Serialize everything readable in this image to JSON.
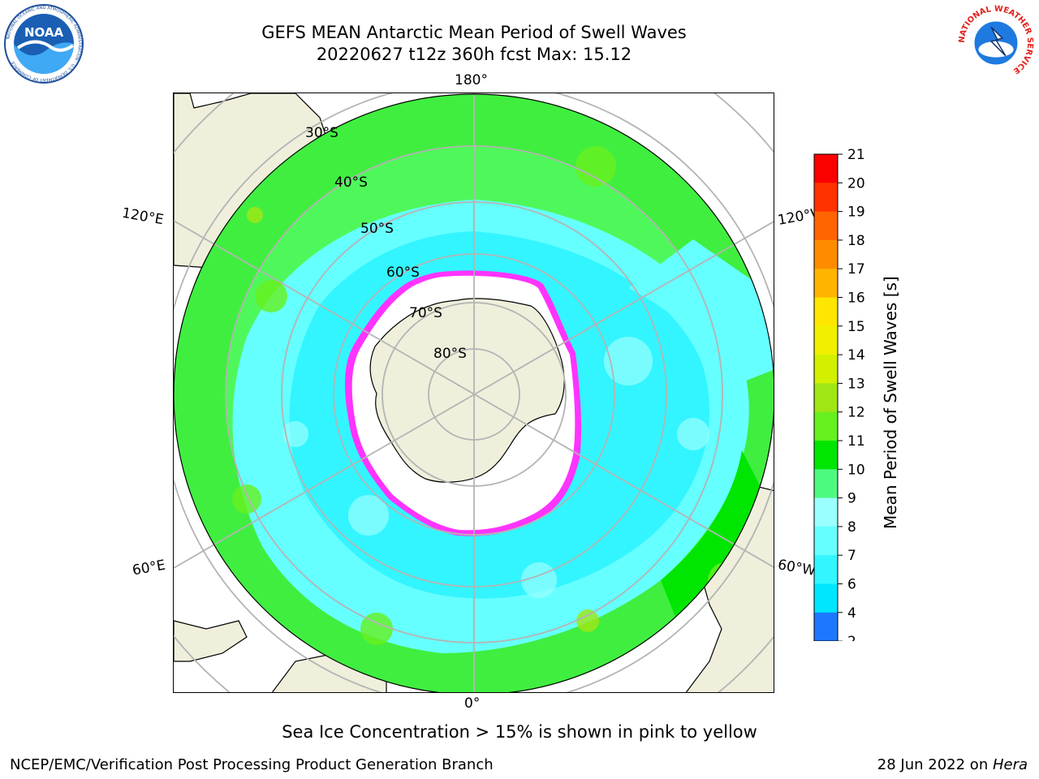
{
  "title_line1": "GEFS MEAN Antarctic Mean Period of Swell Waves",
  "title_line2": "20220627 t12z 360h fcst   Max: 15.12",
  "logos": {
    "left": "noaa-logo",
    "right": "nws-logo",
    "left_text": "NOAA",
    "left_ring": "NATIONAL OCEANIC AND ATMOSPHERIC ADMINISTRATION · U.S. DEPARTMENT OF COMMERCE",
    "right_ring": "NATIONAL WEATHER SERVICE"
  },
  "longitude_labels": {
    "top": "180°",
    "left_upper": "120°E",
    "right_upper": "120°W",
    "left_lower": "60°E",
    "right_lower": "60°W",
    "bottom": "0°"
  },
  "latitude_labels": [
    "30°S",
    "40°S",
    "50°S",
    "60°S",
    "70°S",
    "80°S"
  ],
  "colorbar": {
    "label": "Mean Period of Swell Waves [s]",
    "ticks": [
      "2",
      "4",
      "6",
      "7",
      "8",
      "9",
      "10",
      "11",
      "12",
      "13",
      "14",
      "15",
      "16",
      "17",
      "18",
      "19",
      "20",
      "21"
    ],
    "colors": [
      "#1e78ff",
      "#00e6ff",
      "#33f5ff",
      "#66ffff",
      "#99ffff",
      "#4dfa80",
      "#00e600",
      "#66f01e",
      "#a0e614",
      "#d2f000",
      "#f0f000",
      "#ffe600",
      "#ffb400",
      "#ff8c00",
      "#ff6400",
      "#ff3200",
      "#fa0000"
    ],
    "extend_color": "#0000ff"
  },
  "colors": {
    "land": "#efefdc",
    "ice": "#ffffff",
    "ice_edge": "#ff33ff",
    "grid": "#b4b4b4"
  },
  "bottom_note": "Sea Ice Concentration > 15% is shown in pink to yellow",
  "footer_left": "NCEP/EMC/Verification Post Processing Product Generation Branch",
  "footer_right_prefix": "28 Jun 2022 on ",
  "footer_right_host": "Hera"
}
